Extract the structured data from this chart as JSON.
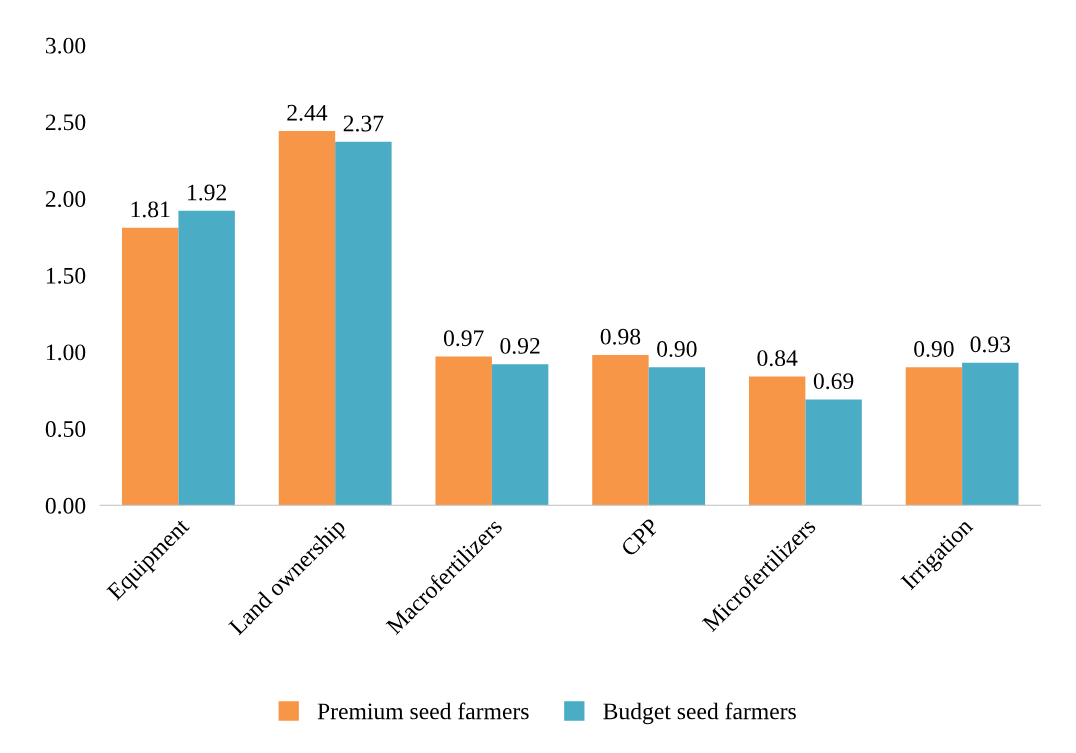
{
  "chart_data": {
    "type": "bar",
    "categories": [
      "Equipment",
      "Land ownership",
      "Macrofertilizers",
      "CPP",
      "Microfertilizers",
      "Irrigation"
    ],
    "series": [
      {
        "name": "Premium seed farmers",
        "color": "#f79646",
        "values": [
          1.81,
          2.44,
          0.97,
          0.98,
          0.84,
          0.9
        ],
        "value_labels": [
          "1.81",
          "2.44",
          "0.97",
          "0.98",
          "0.84",
          "0.90"
        ]
      },
      {
        "name": "Budget seed farmers",
        "color": "#4bacc6",
        "values": [
          1.92,
          2.37,
          0.92,
          0.9,
          0.69,
          0.93
        ],
        "value_labels": [
          "1.92",
          "2.37",
          "0.92",
          "0.90",
          "0.69",
          "0.93"
        ]
      }
    ],
    "ylim": [
      0,
      3
    ],
    "yticks": [
      {
        "value": 0,
        "label": "0.00"
      },
      {
        "value": 0.5,
        "label": "0.50"
      },
      {
        "value": 1,
        "label": "1.00"
      },
      {
        "value": 1.5,
        "label": "1.50"
      },
      {
        "value": 2,
        "label": "2.00"
      },
      {
        "value": 2.5,
        "label": "2.50"
      },
      {
        "value": 3,
        "label": "3.00"
      }
    ],
    "grid": false,
    "legend": "bottom"
  }
}
